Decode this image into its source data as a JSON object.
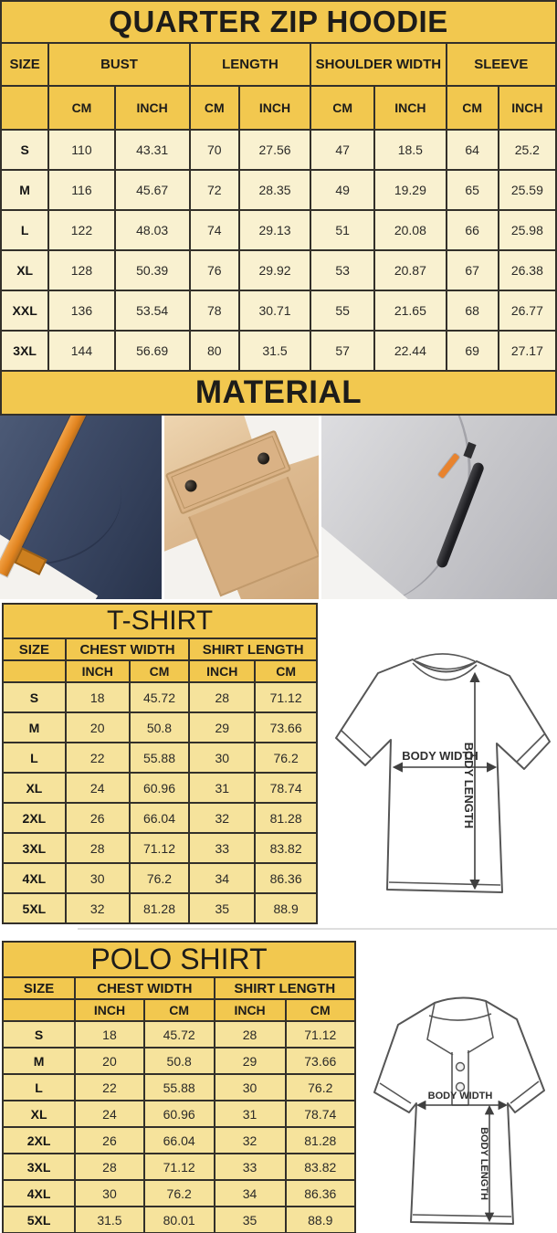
{
  "colors": {
    "header_yellow": "#f2c84f",
    "hoodie_cell_cream": "#f9f1d0",
    "shirt_cell_yellow": "#f6e39c",
    "table_border": "#33302a",
    "strap_orange": "#e0831f"
  },
  "hoodie": {
    "title": "QUARTER ZIP HOODIE",
    "headers": {
      "size": "SIZE",
      "groups": [
        "BUST",
        "LENGTH",
        "SHOULDER WIDTH",
        "SLEEVE"
      ],
      "units": [
        "CM",
        "INCH",
        "CM",
        "INCH",
        "CM",
        "INCH",
        "CM",
        "INCH"
      ]
    },
    "rows": [
      {
        "size": "S",
        "values": [
          "110",
          "43.31",
          "70",
          "27.56",
          "47",
          "18.5",
          "64",
          "25.2"
        ]
      },
      {
        "size": "M",
        "values": [
          "116",
          "45.67",
          "72",
          "28.35",
          "49",
          "19.29",
          "65",
          "25.59"
        ]
      },
      {
        "size": "L",
        "values": [
          "122",
          "48.03",
          "74",
          "29.13",
          "51",
          "20.08",
          "66",
          "25.98"
        ]
      },
      {
        "size": "XL",
        "values": [
          "128",
          "50.39",
          "76",
          "29.92",
          "53",
          "20.87",
          "67",
          "26.38"
        ]
      },
      {
        "size": "XXL",
        "values": [
          "136",
          "53.54",
          "78",
          "30.71",
          "55",
          "21.65",
          "68",
          "26.77"
        ]
      },
      {
        "size": "3XL",
        "values": [
          "144",
          "56.69",
          "80",
          "31.5",
          "57",
          "22.44",
          "69",
          "27.17"
        ]
      }
    ]
  },
  "material": {
    "title": "MATERIAL",
    "photos": [
      {
        "name": "navy-fleece-orange-drawstring-photo"
      },
      {
        "name": "khaki-snap-flap-pocket-photo"
      },
      {
        "name": "gray-fleece-zipper-pocket-photo"
      }
    ]
  },
  "tshirt": {
    "title": "T-SHIRT",
    "headers": {
      "size": "SIZE",
      "groups": [
        "CHEST WIDTH",
        "SHIRT LENGTH"
      ],
      "units": [
        "INCH",
        "CM",
        "INCH",
        "CM"
      ]
    },
    "rows": [
      {
        "size": "S",
        "values": [
          "18",
          "45.72",
          "28",
          "71.12"
        ]
      },
      {
        "size": "M",
        "values": [
          "20",
          "50.8",
          "29",
          "73.66"
        ]
      },
      {
        "size": "L",
        "values": [
          "22",
          "55.88",
          "30",
          "76.2"
        ]
      },
      {
        "size": "XL",
        "values": [
          "24",
          "60.96",
          "31",
          "78.74"
        ]
      },
      {
        "size": "2XL",
        "values": [
          "26",
          "66.04",
          "32",
          "81.28"
        ]
      },
      {
        "size": "3XL",
        "values": [
          "28",
          "71.12",
          "33",
          "83.82"
        ]
      },
      {
        "size": "4XL",
        "values": [
          "30",
          "76.2",
          "34",
          "86.36"
        ]
      },
      {
        "size": "5XL",
        "values": [
          "32",
          "81.28",
          "35",
          "88.9"
        ]
      }
    ]
  },
  "polo": {
    "title": "POLO SHIRT",
    "headers": {
      "size": "SIZE",
      "groups": [
        "CHEST WIDTH",
        "SHIRT LENGTH"
      ],
      "units": [
        "INCH",
        "CM",
        "INCH",
        "CM"
      ]
    },
    "rows": [
      {
        "size": "S",
        "values": [
          "18",
          "45.72",
          "28",
          "71.12"
        ]
      },
      {
        "size": "M",
        "values": [
          "20",
          "50.8",
          "29",
          "73.66"
        ]
      },
      {
        "size": "L",
        "values": [
          "22",
          "55.88",
          "30",
          "76.2"
        ]
      },
      {
        "size": "XL",
        "values": [
          "24",
          "60.96",
          "31",
          "78.74"
        ]
      },
      {
        "size": "2XL",
        "values": [
          "26",
          "66.04",
          "32",
          "81.28"
        ]
      },
      {
        "size": "3XL",
        "values": [
          "28",
          "71.12",
          "33",
          "83.82"
        ]
      },
      {
        "size": "4XL",
        "values": [
          "30",
          "76.2",
          "34",
          "86.36"
        ]
      },
      {
        "size": "5XL",
        "values": [
          "31.5",
          "80.01",
          "35",
          "88.9"
        ]
      }
    ]
  },
  "diagram": {
    "body_width": "BODY WIDTH",
    "body_length": "BODY LENGTH"
  }
}
